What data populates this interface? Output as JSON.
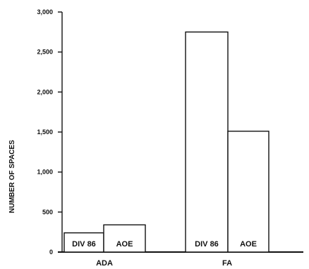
{
  "chart_data": {
    "type": "bar",
    "ylabel": "NUMBER OF SPACES",
    "ylim": [
      0,
      3000
    ],
    "yticks": [
      "0",
      "500",
      "1,000",
      "1,500",
      "2,000",
      "2,500",
      "3,000"
    ],
    "grid": false,
    "legend": "none",
    "bar_color": "#ffffff",
    "edge_color": "#111111",
    "categories": [
      "ADA",
      "FA"
    ],
    "bars": [
      {
        "category": "ADA",
        "label": "DIV 86",
        "value": 240
      },
      {
        "category": "ADA",
        "label": "AOE",
        "value": 340
      },
      {
        "category": "FA",
        "label": "DIV 86",
        "value": 2750
      },
      {
        "category": "FA",
        "label": "AOE",
        "value": 1510
      }
    ]
  }
}
